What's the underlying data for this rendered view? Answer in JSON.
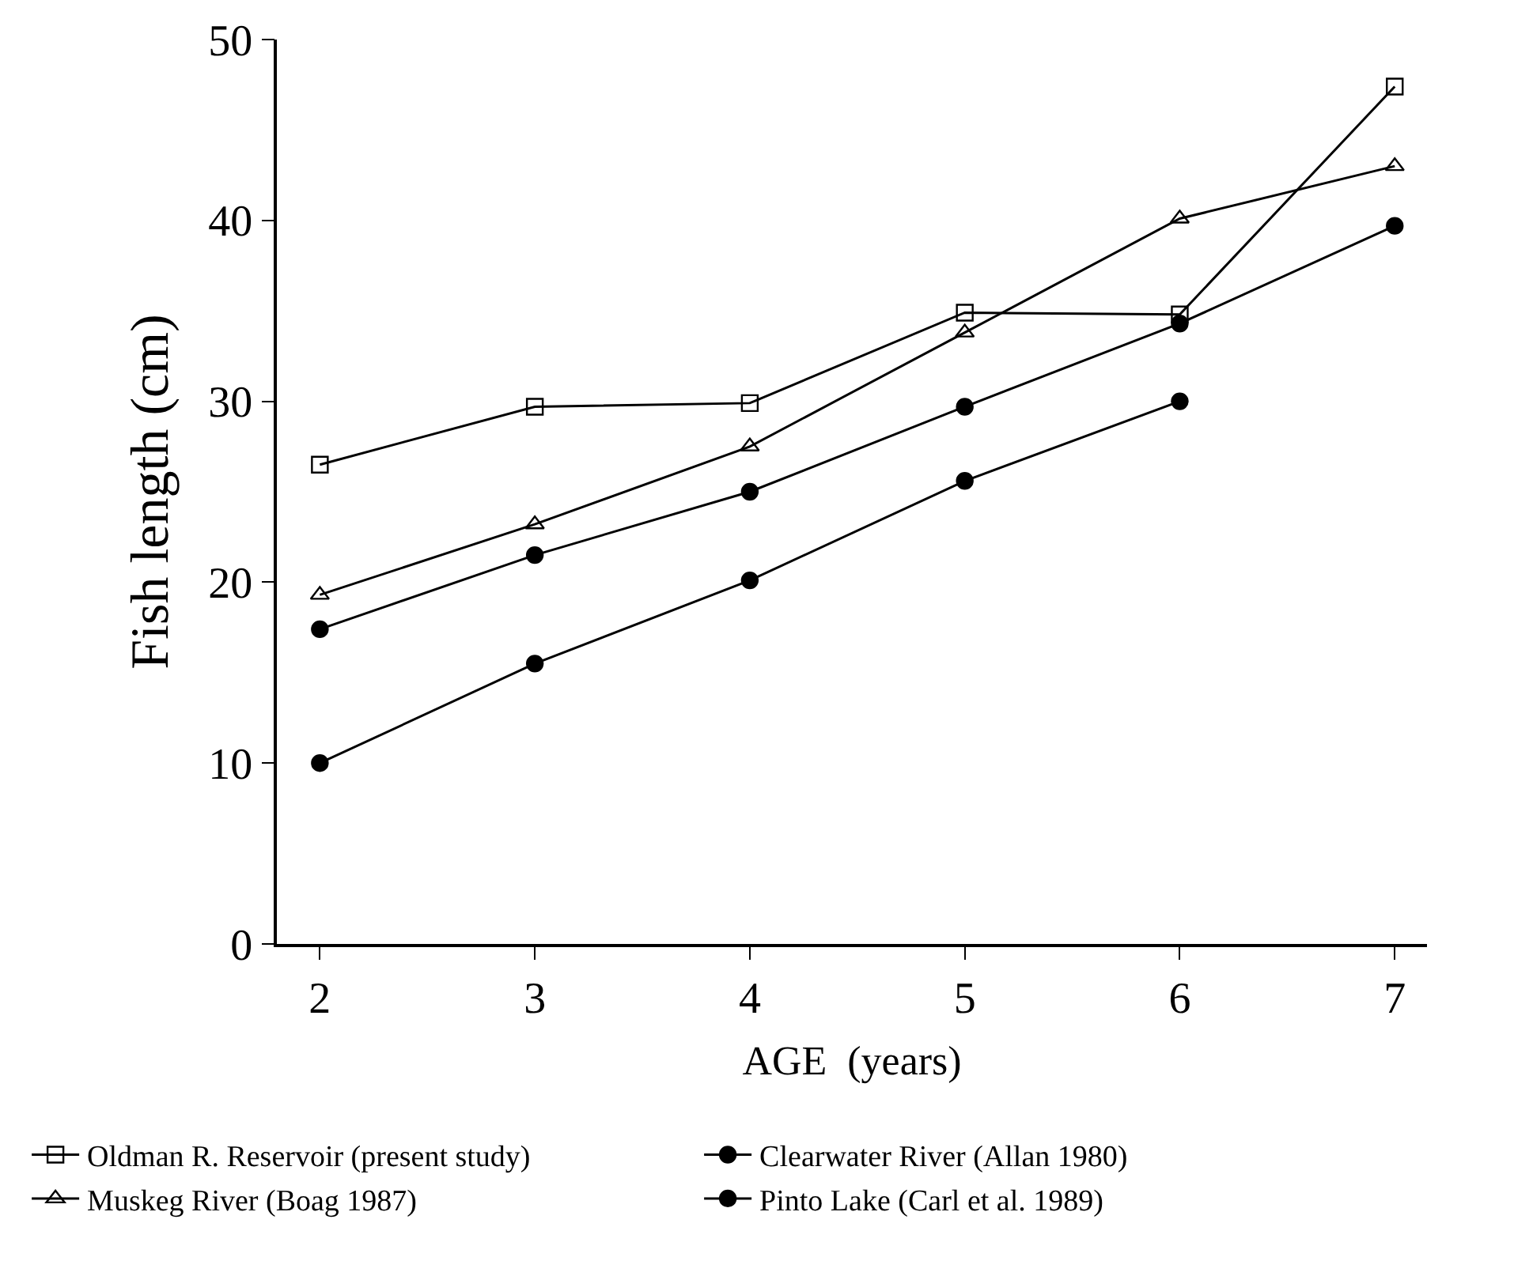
{
  "chart_data": {
    "type": "line",
    "xlabel": "AGE  (years)",
    "ylabel": "Fish length (cm)",
    "x": [
      2,
      3,
      4,
      5,
      6,
      7
    ],
    "series": [
      {
        "name": "Oldman R. Reservoir (present study)",
        "color": "#000000",
        "marker": "square",
        "values": [
          26.5,
          29.7,
          29.9,
          34.9,
          34.8,
          47.4
        ]
      },
      {
        "name": "Clearwater River (Allan 1980)",
        "color": "#000000",
        "marker": "circle",
        "values": [
          17.4,
          21.5,
          25.0,
          29.7,
          34.3,
          39.7
        ]
      },
      {
        "name": "Muskeg River (Boag 1987)",
        "color": "#000000",
        "marker": "triangle",
        "values": [
          19.3,
          23.2,
          27.5,
          33.8,
          40.1,
          43.0
        ]
      },
      {
        "name": "Pinto Lake (Carl et al. 1989)",
        "color": "#000000",
        "marker": "circle",
        "values": [
          10.0,
          15.5,
          20.1,
          25.6,
          30.0,
          null
        ]
      }
    ],
    "xlim": [
      1.8,
      7.15
    ],
    "xticks": [
      2,
      3,
      4,
      5,
      6,
      7
    ],
    "ylim": [
      0,
      50
    ],
    "yticks": [
      0,
      10,
      20,
      30,
      40,
      50
    ],
    "legend": "bottom",
    "line_style": "solid"
  }
}
